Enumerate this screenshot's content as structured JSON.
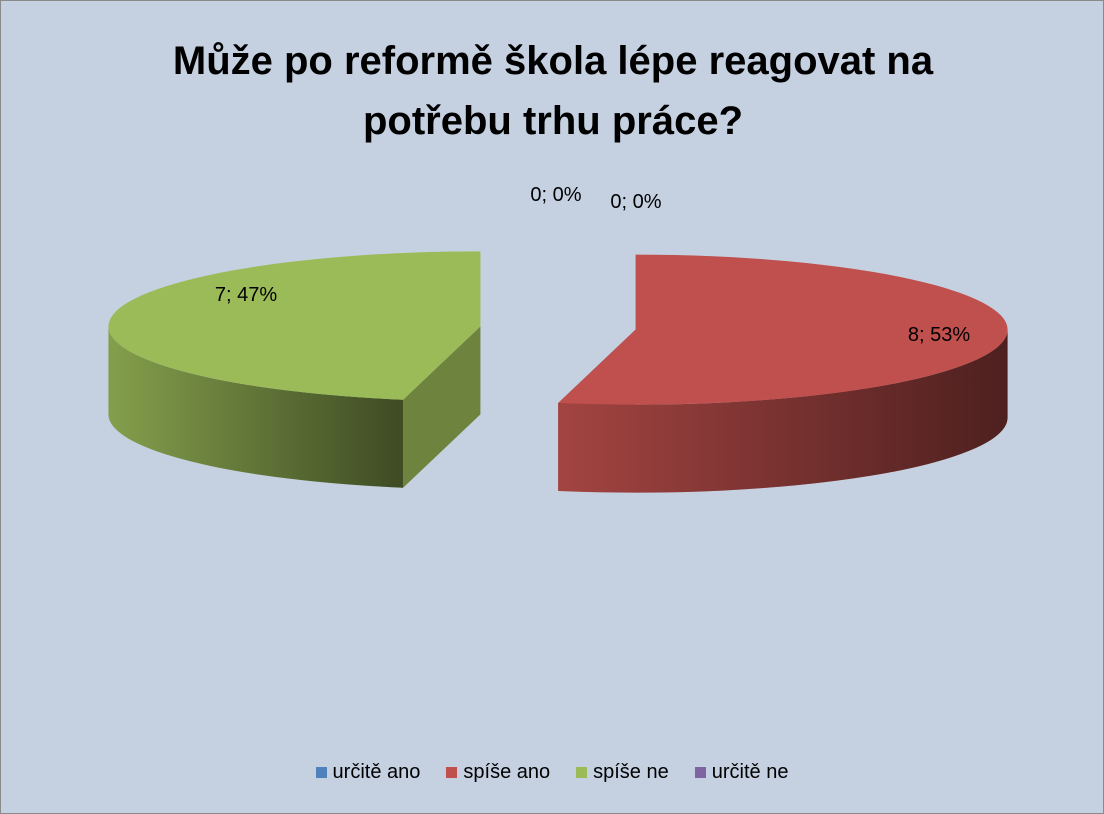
{
  "chart_data": {
    "type": "pie3d",
    "title": "Může po reformě škola lépe reagovat na potřebu trhu práce?",
    "categories": [
      "určitě ano",
      "spíše ano",
      "spíše ne",
      "určitě ne"
    ],
    "values": [
      0,
      8,
      7,
      0
    ],
    "value_labels": [
      "0; 0%",
      "8; 53%",
      "7; 47%",
      "0; 0%"
    ],
    "colors": [
      "#4f81bd",
      "#c0504d",
      "#9bbb59",
      "#8064a2"
    ],
    "legend": "bottom"
  }
}
